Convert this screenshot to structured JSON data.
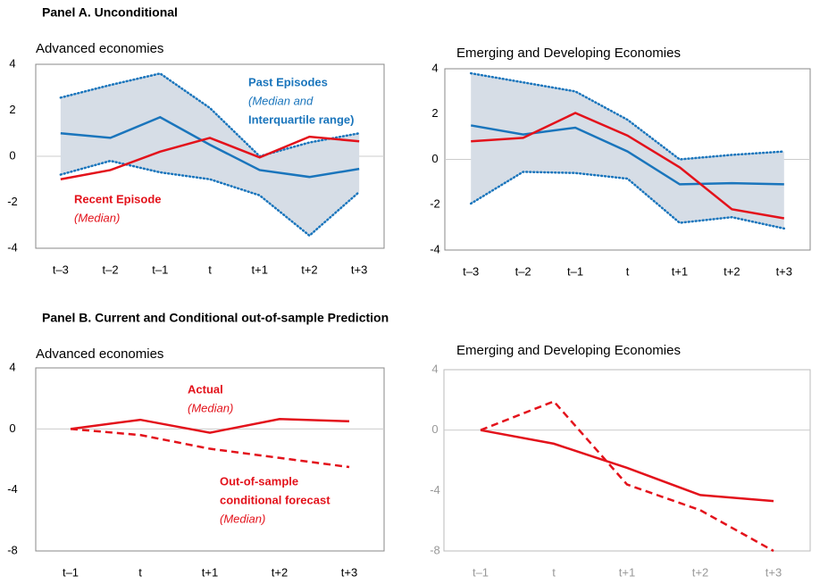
{
  "panel_titles": [
    "Panel A. Unconditional",
    "Panel B. Current and Conditional out-of-sample Prediction"
  ],
  "chart_data": [
    {
      "type": "line",
      "title": "Advanced economies",
      "categories": [
        "t–3",
        "t–2",
        "t–1",
        "t",
        "t+1",
        "t+2",
        "t+3"
      ],
      "ylim": [
        -4,
        4
      ],
      "yticks": [
        -4,
        -2,
        0,
        2,
        4
      ],
      "band_color": "#d6dde6",
      "series": [
        {
          "name": "Past Episodes",
          "label": [
            "(Median and",
            "Interquartile range)"
          ],
          "color": "#1a75bc",
          "values": [
            1.0,
            0.8,
            1.7,
            0.5,
            -0.6,
            -0.9,
            -0.55
          ],
          "upper": [
            2.55,
            3.1,
            3.6,
            2.1,
            0.0,
            0.6,
            1.0
          ],
          "lower": [
            -0.8,
            -0.2,
            -0.7,
            -1.0,
            -1.7,
            -3.45,
            -1.55
          ]
        },
        {
          "name": "Recent Episode",
          "label": [
            "(Median)"
          ],
          "color": "#e3121b",
          "values": [
            -1.0,
            -0.6,
            0.2,
            0.8,
            -0.05,
            0.85,
            0.65
          ]
        }
      ]
    },
    {
      "type": "line",
      "title": "Emerging and Developing Economies",
      "categories": [
        "t–3",
        "t–2",
        "t–1",
        "t",
        "t+1",
        "t+2",
        "t+3"
      ],
      "ylim": [
        -4,
        4
      ],
      "yticks": [
        -4,
        -2,
        0,
        2,
        4
      ],
      "band_color": "#d6dde6",
      "series": [
        {
          "color": "#1a75bc",
          "values": [
            1.5,
            1.1,
            1.4,
            0.35,
            -1.1,
            -1.05,
            -1.1
          ],
          "upper": [
            3.8,
            3.4,
            3.0,
            1.75,
            0.0,
            0.2,
            0.35
          ],
          "lower": [
            -1.95,
            -0.55,
            -0.6,
            -0.85,
            -2.8,
            -2.55,
            -3.05
          ]
        },
        {
          "color": "#e3121b",
          "values": [
            0.8,
            0.95,
            2.05,
            1.05,
            -0.35,
            -2.2,
            -2.6
          ]
        }
      ]
    },
    {
      "type": "line",
      "title": "Advanced economies",
      "categories": [
        "t–1",
        "t",
        "t+1",
        "t+2",
        "t+3"
      ],
      "ylim": [
        -8,
        4
      ],
      "yticks": [
        -8,
        -4,
        0,
        4
      ],
      "series": [
        {
          "name": "Actual",
          "label": [
            "(Median)"
          ],
          "color": "#e3121b",
          "values": [
            0,
            0.6,
            -0.25,
            0.65,
            0.5
          ]
        },
        {
          "name": "Out-of-sample",
          "label": [
            "conditional forecast",
            "(Median)"
          ],
          "color": "#e3121b",
          "dashed": true,
          "values": [
            0,
            -0.4,
            -1.3,
            -1.9,
            -2.5
          ]
        }
      ]
    },
    {
      "type": "line",
      "title": "Emerging and Developing Economies",
      "categories": [
        "t–1",
        "t",
        "t+1",
        "t+2",
        "t+3"
      ],
      "ylim": [
        -8,
        4
      ],
      "yticks": [
        -8,
        -4,
        0,
        4
      ],
      "tick_color": "#999999",
      "series": [
        {
          "color": "#e3121b",
          "values": [
            0,
            -0.9,
            -2.5,
            -4.3,
            -4.7
          ]
        },
        {
          "color": "#e3121b",
          "dashed": true,
          "values": [
            0,
            1.9,
            -3.6,
            -5.3,
            -8.0
          ]
        }
      ]
    }
  ]
}
